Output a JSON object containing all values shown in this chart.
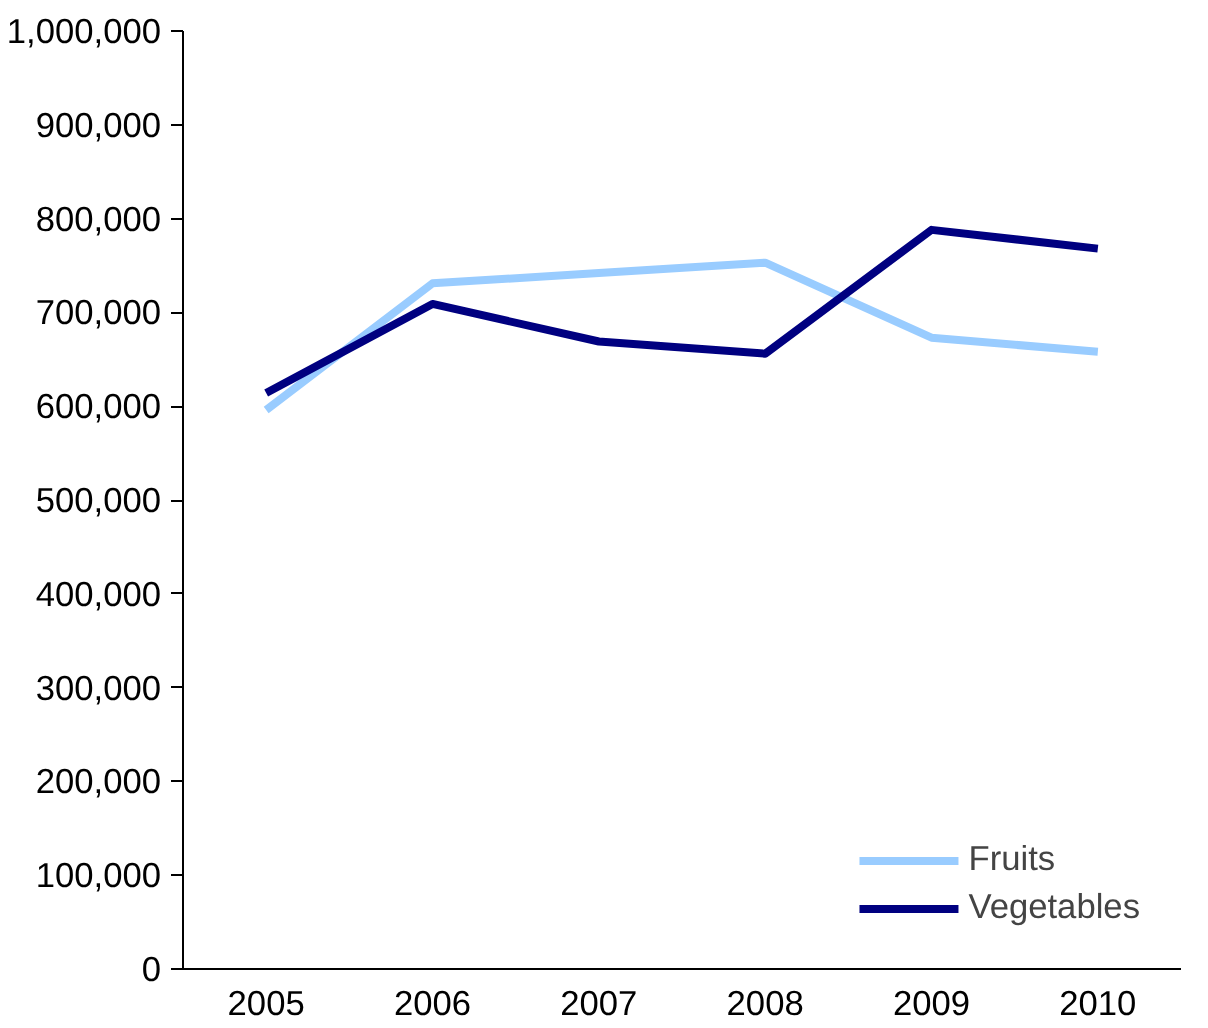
{
  "chart_data": {
    "type": "line",
    "categories": [
      "2005",
      "2006",
      "2007",
      "2008",
      "2009",
      "2010"
    ],
    "series": [
      {
        "name": "Fruits",
        "color": "#99ccff",
        "values": [
          596000,
          731000,
          742000,
          753000,
          673000,
          658000
        ]
      },
      {
        "name": "Vegetables",
        "color": "#000080",
        "values": [
          614000,
          709000,
          669000,
          656000,
          788000,
          768000
        ]
      }
    ],
    "ylim": [
      0,
      1000000
    ],
    "yticks": [
      {
        "value": 0,
        "label": "0"
      },
      {
        "value": 100000,
        "label": "100,000"
      },
      {
        "value": 200000,
        "label": "200,000"
      },
      {
        "value": 300000,
        "label": "300,000"
      },
      {
        "value": 400000,
        "label": "400,000"
      },
      {
        "value": 500000,
        "label": "500,000"
      },
      {
        "value": 600000,
        "label": "600,000"
      },
      {
        "value": 700000,
        "label": "700,000"
      },
      {
        "value": 800000,
        "label": "800,000"
      },
      {
        "value": 900000,
        "label": "900,000"
      },
      {
        "value": 1000000,
        "label": "1,000,000"
      }
    ],
    "grid": false,
    "legend": "bottom right"
  }
}
